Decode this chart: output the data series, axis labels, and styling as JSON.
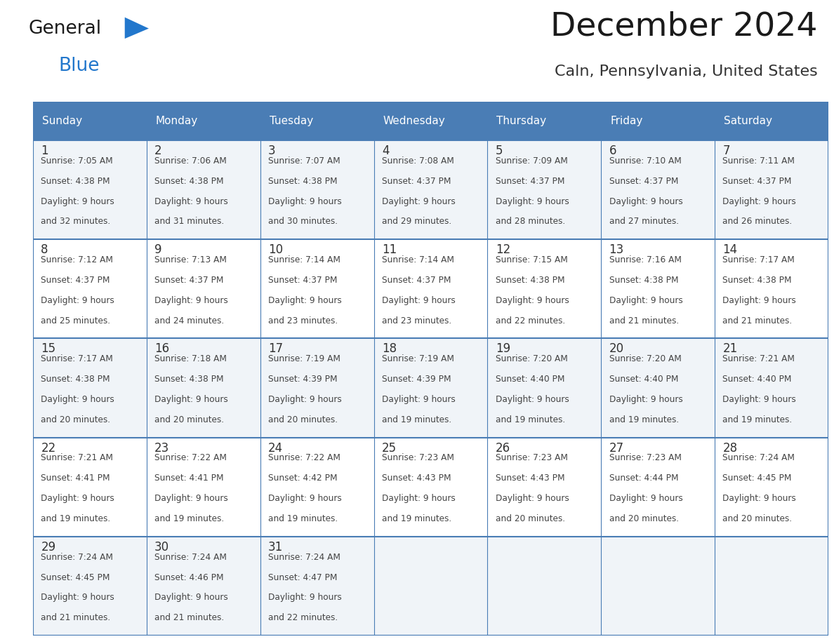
{
  "title": "December 2024",
  "subtitle": "Caln, Pennsylvania, United States",
  "days_of_week": [
    "Sunday",
    "Monday",
    "Tuesday",
    "Wednesday",
    "Thursday",
    "Friday",
    "Saturday"
  ],
  "header_bg": "#4a7db5",
  "header_text": "#ffffff",
  "cell_bg_light": "#f0f4f8",
  "cell_bg_white": "#ffffff",
  "grid_line_color": "#4a7db5",
  "day_num_color": "#333333",
  "cell_text_color": "#444444",
  "title_color": "#1a1a1a",
  "subtitle_color": "#333333",
  "logo_general_color": "#1a1a1a",
  "logo_blue_color": "#2277cc",
  "logo_triangle_color": "#2277cc",
  "weeks": [
    [
      {
        "day": 1,
        "sunrise": "7:05 AM",
        "sunset": "4:38 PM",
        "daylight": "9 hours and 32 minutes."
      },
      {
        "day": 2,
        "sunrise": "7:06 AM",
        "sunset": "4:38 PM",
        "daylight": "9 hours and 31 minutes."
      },
      {
        "day": 3,
        "sunrise": "7:07 AM",
        "sunset": "4:38 PM",
        "daylight": "9 hours and 30 minutes."
      },
      {
        "day": 4,
        "sunrise": "7:08 AM",
        "sunset": "4:37 PM",
        "daylight": "9 hours and 29 minutes."
      },
      {
        "day": 5,
        "sunrise": "7:09 AM",
        "sunset": "4:37 PM",
        "daylight": "9 hours and 28 minutes."
      },
      {
        "day": 6,
        "sunrise": "7:10 AM",
        "sunset": "4:37 PM",
        "daylight": "9 hours and 27 minutes."
      },
      {
        "day": 7,
        "sunrise": "7:11 AM",
        "sunset": "4:37 PM",
        "daylight": "9 hours and 26 minutes."
      }
    ],
    [
      {
        "day": 8,
        "sunrise": "7:12 AM",
        "sunset": "4:37 PM",
        "daylight": "9 hours and 25 minutes."
      },
      {
        "day": 9,
        "sunrise": "7:13 AM",
        "sunset": "4:37 PM",
        "daylight": "9 hours and 24 minutes."
      },
      {
        "day": 10,
        "sunrise": "7:14 AM",
        "sunset": "4:37 PM",
        "daylight": "9 hours and 23 minutes."
      },
      {
        "day": 11,
        "sunrise": "7:14 AM",
        "sunset": "4:37 PM",
        "daylight": "9 hours and 23 minutes."
      },
      {
        "day": 12,
        "sunrise": "7:15 AM",
        "sunset": "4:38 PM",
        "daylight": "9 hours and 22 minutes."
      },
      {
        "day": 13,
        "sunrise": "7:16 AM",
        "sunset": "4:38 PM",
        "daylight": "9 hours and 21 minutes."
      },
      {
        "day": 14,
        "sunrise": "7:17 AM",
        "sunset": "4:38 PM",
        "daylight": "9 hours and 21 minutes."
      }
    ],
    [
      {
        "day": 15,
        "sunrise": "7:17 AM",
        "sunset": "4:38 PM",
        "daylight": "9 hours and 20 minutes."
      },
      {
        "day": 16,
        "sunrise": "7:18 AM",
        "sunset": "4:38 PM",
        "daylight": "9 hours and 20 minutes."
      },
      {
        "day": 17,
        "sunrise": "7:19 AM",
        "sunset": "4:39 PM",
        "daylight": "9 hours and 20 minutes."
      },
      {
        "day": 18,
        "sunrise": "7:19 AM",
        "sunset": "4:39 PM",
        "daylight": "9 hours and 19 minutes."
      },
      {
        "day": 19,
        "sunrise": "7:20 AM",
        "sunset": "4:40 PM",
        "daylight": "9 hours and 19 minutes."
      },
      {
        "day": 20,
        "sunrise": "7:20 AM",
        "sunset": "4:40 PM",
        "daylight": "9 hours and 19 minutes."
      },
      {
        "day": 21,
        "sunrise": "7:21 AM",
        "sunset": "4:40 PM",
        "daylight": "9 hours and 19 minutes."
      }
    ],
    [
      {
        "day": 22,
        "sunrise": "7:21 AM",
        "sunset": "4:41 PM",
        "daylight": "9 hours and 19 minutes."
      },
      {
        "day": 23,
        "sunrise": "7:22 AM",
        "sunset": "4:41 PM",
        "daylight": "9 hours and 19 minutes."
      },
      {
        "day": 24,
        "sunrise": "7:22 AM",
        "sunset": "4:42 PM",
        "daylight": "9 hours and 19 minutes."
      },
      {
        "day": 25,
        "sunrise": "7:23 AM",
        "sunset": "4:43 PM",
        "daylight": "9 hours and 19 minutes."
      },
      {
        "day": 26,
        "sunrise": "7:23 AM",
        "sunset": "4:43 PM",
        "daylight": "9 hours and 20 minutes."
      },
      {
        "day": 27,
        "sunrise": "7:23 AM",
        "sunset": "4:44 PM",
        "daylight": "9 hours and 20 minutes."
      },
      {
        "day": 28,
        "sunrise": "7:24 AM",
        "sunset": "4:45 PM",
        "daylight": "9 hours and 20 minutes."
      }
    ],
    [
      {
        "day": 29,
        "sunrise": "7:24 AM",
        "sunset": "4:45 PM",
        "daylight": "9 hours and 21 minutes."
      },
      {
        "day": 30,
        "sunrise": "7:24 AM",
        "sunset": "4:46 PM",
        "daylight": "9 hours and 21 minutes."
      },
      {
        "day": 31,
        "sunrise": "7:24 AM",
        "sunset": "4:47 PM",
        "daylight": "9 hours and 22 minutes."
      },
      null,
      null,
      null,
      null
    ]
  ],
  "num_weeks": 5
}
